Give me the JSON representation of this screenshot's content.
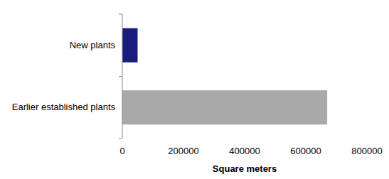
{
  "chart_data": {
    "type": "bar",
    "orientation": "horizontal",
    "categories": [
      "New plants",
      "Earlier established plants"
    ],
    "values": [
      50000,
      670000
    ],
    "colors": [
      "#1c1c80",
      "#a9a9a9"
    ],
    "xlabel": "Square meters",
    "xlim": [
      0,
      800000
    ],
    "xticks": [
      0,
      200000,
      400000,
      600000,
      800000
    ],
    "grid": false
  }
}
